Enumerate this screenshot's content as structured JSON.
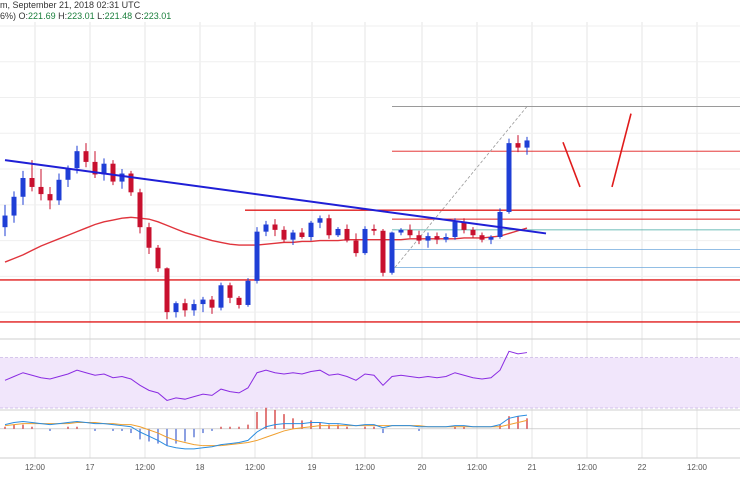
{
  "header": {
    "line1": "m, September 21, 2018 02:31 UTC",
    "line2_prefix": "6%)",
    "o": "221.69",
    "h": "223.01",
    "l": "221.48",
    "c": "223.01"
  },
  "colors": {
    "up": "#1f3fd6",
    "down": "#c8102e",
    "trend": "#1f1fd6",
    "hline": "#e01b1b",
    "ma": "#e0343c",
    "fib_grey": "#9a9a9a",
    "fib_blue": "#6fa8dc",
    "rsi_fill": "#f1e6fb",
    "rsi_line": "#8a2be2",
    "macd_fast": "#2a8de0",
    "macd_slow": "#f0a030"
  },
  "chart_data": {
    "type": "candlestick",
    "x_tick_labels": [
      "12:00",
      "17",
      "12:00",
      "18",
      "12:00",
      "19",
      "12:00",
      "20",
      "12:00",
      "21",
      "12:00",
      "22",
      "12:00"
    ],
    "price_ylim": [
      198,
      232
    ],
    "candles": [
      [
        209.5,
        212.0,
        208.5,
        210.8
      ],
      [
        210.8,
        213.5,
        210.0,
        212.9
      ],
      [
        212.9,
        215.8,
        212.0,
        215.0
      ],
      [
        215.0,
        217.0,
        213.5,
        214.0
      ],
      [
        214.0,
        216.0,
        212.5,
        213.2
      ],
      [
        213.2,
        214.0,
        211.5,
        212.5
      ],
      [
        212.5,
        215.5,
        212.0,
        214.8
      ],
      [
        214.8,
        216.4,
        214.0,
        216.1
      ],
      [
        216.1,
        218.6,
        215.5,
        218.0
      ],
      [
        218.0,
        218.9,
        216.2,
        216.8
      ],
      [
        216.8,
        218.0,
        215.0,
        215.4
      ],
      [
        215.4,
        217.2,
        214.7,
        216.6
      ],
      [
        216.6,
        217.0,
        214.2,
        214.6
      ],
      [
        214.6,
        216.0,
        213.8,
        215.5
      ],
      [
        215.5,
        215.8,
        213.0,
        213.4
      ],
      [
        213.4,
        213.8,
        208.8,
        209.5
      ],
      [
        209.5,
        210.0,
        206.5,
        207.2
      ],
      [
        207.2,
        207.5,
        204.5,
        204.9
      ],
      [
        204.9,
        205.0,
        199.2,
        200.0
      ],
      [
        200.0,
        201.2,
        199.4,
        201.0
      ],
      [
        201.0,
        201.5,
        199.5,
        200.2
      ],
      [
        200.2,
        201.4,
        199.6,
        200.9
      ],
      [
        200.9,
        201.7,
        200.0,
        201.4
      ],
      [
        201.4,
        201.8,
        199.8,
        200.5
      ],
      [
        200.5,
        203.3,
        200.2,
        203.0
      ],
      [
        203.0,
        203.3,
        201.0,
        201.6
      ],
      [
        201.6,
        201.8,
        200.4,
        200.8
      ],
      [
        200.8,
        203.8,
        200.6,
        203.5
      ],
      [
        203.5,
        209.5,
        203.2,
        209.0
      ],
      [
        209.0,
        210.2,
        208.5,
        209.8
      ],
      [
        209.8,
        210.4,
        208.5,
        209.2
      ],
      [
        209.2,
        209.6,
        207.8,
        208.1
      ],
      [
        208.1,
        209.2,
        207.5,
        208.9
      ],
      [
        208.9,
        209.4,
        208.2,
        208.4
      ],
      [
        208.4,
        210.2,
        208.0,
        210.0
      ],
      [
        210.0,
        210.8,
        209.4,
        210.5
      ],
      [
        210.5,
        210.9,
        208.2,
        208.6
      ],
      [
        208.6,
        209.5,
        208.4,
        209.3
      ],
      [
        209.3,
        209.8,
        207.8,
        208.0
      ],
      [
        208.0,
        208.8,
        206.2,
        206.6
      ],
      [
        206.6,
        209.6,
        206.4,
        209.3
      ],
      [
        209.3,
        209.8,
        208.6,
        209.1
      ],
      [
        209.1,
        209.3,
        204.0,
        204.4
      ],
      [
        204.4,
        209.0,
        204.2,
        208.9
      ],
      [
        208.9,
        209.4,
        208.6,
        209.2
      ],
      [
        209.2,
        209.8,
        208.3,
        208.6
      ],
      [
        208.6,
        209.1,
        207.6,
        208.0
      ],
      [
        208.0,
        208.9,
        207.2,
        208.5
      ],
      [
        208.5,
        208.9,
        207.6,
        208.1
      ],
      [
        208.1,
        208.8,
        207.8,
        208.4
      ],
      [
        208.4,
        210.5,
        208.1,
        210.1
      ],
      [
        210.1,
        210.5,
        208.8,
        209.2
      ],
      [
        209.2,
        209.5,
        208.3,
        208.6
      ],
      [
        208.6,
        208.9,
        207.8,
        208.1
      ],
      [
        208.1,
        208.6,
        207.6,
        208.4
      ],
      [
        208.4,
        211.6,
        208.2,
        211.2
      ],
      [
        211.2,
        219.4,
        211.0,
        218.9
      ],
      [
        218.9,
        219.8,
        217.9,
        218.4
      ],
      [
        218.4,
        219.6,
        217.6,
        219.2
      ]
    ],
    "trendline": [
      [
        0,
        217.0
      ],
      [
        59,
        209.0
      ]
    ],
    "horizontal_levels": [
      211.4,
      210.4,
      203.6,
      198.9,
      218.0
    ],
    "fib_levels": [
      223.0,
      218.0,
      209.2,
      207.0,
      205.0
    ],
    "forecast_path": [
      219.0,
      214.0,
      222.2
    ],
    "moving_average": [
      205.6,
      206.0,
      206.4,
      206.9,
      207.4,
      207.8,
      208.2,
      208.6,
      209.0,
      209.4,
      209.8,
      210.1,
      210.3,
      210.5,
      210.6,
      210.5,
      210.4,
      210.1,
      209.7,
      209.3,
      208.9,
      208.6,
      208.3,
      208.0,
      207.8,
      207.6,
      207.5,
      207.5,
      207.5,
      207.6,
      207.7,
      207.8,
      207.8,
      207.9,
      207.9,
      208.0,
      208.0,
      208.0,
      208.1,
      208.1,
      208.1,
      208.1,
      208.1,
      208.1,
      208.1,
      208.2,
      208.2,
      208.2,
      208.2,
      208.2,
      208.2,
      208.3,
      208.3,
      208.3,
      208.4,
      208.5,
      208.8,
      209.1,
      209.4
    ],
    "rsi": [
      52,
      55,
      58,
      56,
      54,
      53,
      55,
      57,
      60,
      58,
      56,
      57,
      54,
      55,
      53,
      48,
      44,
      42,
      36,
      38,
      37,
      39,
      41,
      40,
      45,
      43,
      42,
      46,
      58,
      60,
      58,
      57,
      58,
      57,
      59,
      60,
      56,
      57,
      55,
      52,
      57,
      56,
      48,
      55,
      56,
      55,
      54,
      55,
      54,
      55,
      58,
      56,
      54,
      53,
      54,
      60,
      75,
      73,
      74
    ],
    "rsi_ylim": [
      30,
      80
    ],
    "macd_fast": [
      0.4,
      0.6,
      0.7,
      0.6,
      0.5,
      0.4,
      0.5,
      0.6,
      0.7,
      0.6,
      0.5,
      0.5,
      0.4,
      0.3,
      0.2,
      -0.3,
      -0.7,
      -1.1,
      -1.6,
      -1.8,
      -1.9,
      -1.9,
      -1.8,
      -1.7,
      -1.5,
      -1.4,
      -1.3,
      -1.1,
      -0.3,
      0.2,
      0.4,
      0.5,
      0.5,
      0.5,
      0.6,
      0.6,
      0.5,
      0.5,
      0.4,
      0.3,
      0.4,
      0.4,
      0.1,
      0.3,
      0.3,
      0.3,
      0.2,
      0.2,
      0.2,
      0.2,
      0.3,
      0.3,
      0.2,
      0.2,
      0.2,
      0.4,
      1.0,
      1.2,
      1.3
    ],
    "macd_slow": [
      0.3,
      0.4,
      0.5,
      0.5,
      0.5,
      0.5,
      0.5,
      0.5,
      0.6,
      0.6,
      0.6,
      0.5,
      0.5,
      0.4,
      0.4,
      0.2,
      -0.1,
      -0.4,
      -0.8,
      -1.1,
      -1.3,
      -1.5,
      -1.6,
      -1.6,
      -1.6,
      -1.5,
      -1.4,
      -1.3,
      -1.1,
      -0.8,
      -0.5,
      -0.2,
      0.0,
      0.1,
      0.2,
      0.3,
      0.3,
      0.3,
      0.3,
      0.3,
      0.3,
      0.3,
      0.3,
      0.3,
      0.3,
      0.3,
      0.3,
      0.2,
      0.2,
      0.2,
      0.2,
      0.2,
      0.2,
      0.2,
      0.2,
      0.2,
      0.4,
      0.6,
      0.8
    ],
    "macd_ylim": [
      -2.2,
      1.6
    ]
  }
}
